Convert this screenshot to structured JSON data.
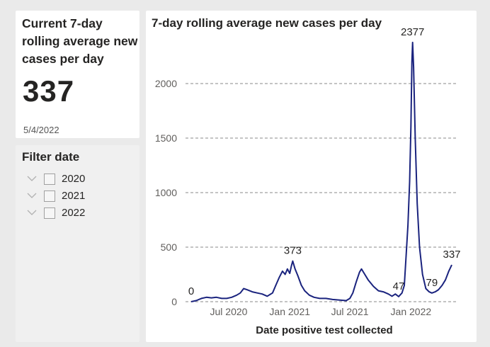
{
  "kpi": {
    "title": "Current 7-day rolling average new cases per day",
    "value": "337",
    "date": "5/4/2022"
  },
  "filter": {
    "title": "Filter date",
    "items": [
      {
        "label": "2020",
        "checked": false
      },
      {
        "label": "2021",
        "checked": false
      },
      {
        "label": "2022",
        "checked": false
      }
    ]
  },
  "chart_data": {
    "type": "line",
    "title": "7-day rolling average new cases per day",
    "xlabel": "Date positive test collected",
    "ylabel": "",
    "ylim": [
      0,
      2500
    ],
    "yticks": [
      0,
      500,
      1000,
      1500,
      2000
    ],
    "ytick_labels": [
      "0",
      "500",
      "1000",
      "1500",
      "2000"
    ],
    "xticks": [
      {
        "date": "2020-07-01",
        "label": "Jul 2020"
      },
      {
        "date": "2021-01-01",
        "label": "Jan 2021"
      },
      {
        "date": "2021-07-01",
        "label": "Jul 2021"
      },
      {
        "date": "2022-01-01",
        "label": "Jan 2022"
      }
    ],
    "grid": true,
    "line_color": "#1a237e",
    "series": [
      {
        "name": "",
        "points": [
          [
            "2020-03-10",
            0
          ],
          [
            "2020-03-25",
            10
          ],
          [
            "2020-04-10",
            30
          ],
          [
            "2020-04-25",
            40
          ],
          [
            "2020-05-10",
            35
          ],
          [
            "2020-05-25",
            40
          ],
          [
            "2020-06-10",
            30
          ],
          [
            "2020-06-25",
            30
          ],
          [
            "2020-07-10",
            40
          ],
          [
            "2020-07-25",
            60
          ],
          [
            "2020-08-05",
            80
          ],
          [
            "2020-08-15",
            120
          ],
          [
            "2020-08-25",
            110
          ],
          [
            "2020-09-10",
            90
          ],
          [
            "2020-09-25",
            80
          ],
          [
            "2020-10-10",
            70
          ],
          [
            "2020-10-25",
            50
          ],
          [
            "2020-11-10",
            80
          ],
          [
            "2020-11-20",
            150
          ],
          [
            "2020-11-30",
            220
          ],
          [
            "2020-12-10",
            280
          ],
          [
            "2020-12-18",
            250
          ],
          [
            "2020-12-25",
            300
          ],
          [
            "2021-01-01",
            260
          ],
          [
            "2021-01-06",
            330
          ],
          [
            "2021-01-10",
            373
          ],
          [
            "2021-01-17",
            300
          ],
          [
            "2021-01-25",
            240
          ],
          [
            "2021-02-05",
            150
          ],
          [
            "2021-02-15",
            100
          ],
          [
            "2021-03-01",
            60
          ],
          [
            "2021-03-15",
            40
          ],
          [
            "2021-04-01",
            30
          ],
          [
            "2021-04-20",
            30
          ],
          [
            "2021-05-10",
            20
          ],
          [
            "2021-06-01",
            15
          ],
          [
            "2021-06-20",
            10
          ],
          [
            "2021-07-01",
            30
          ],
          [
            "2021-07-10",
            80
          ],
          [
            "2021-07-20",
            180
          ],
          [
            "2021-07-30",
            270
          ],
          [
            "2021-08-05",
            300
          ],
          [
            "2021-08-15",
            250
          ],
          [
            "2021-08-25",
            200
          ],
          [
            "2021-09-10",
            140
          ],
          [
            "2021-09-25",
            100
          ],
          [
            "2021-10-10",
            90
          ],
          [
            "2021-10-25",
            70
          ],
          [
            "2021-11-05",
            50
          ],
          [
            "2021-11-15",
            70
          ],
          [
            "2021-11-25",
            47
          ],
          [
            "2021-12-05",
            80
          ],
          [
            "2021-12-12",
            150
          ],
          [
            "2021-12-18",
            450
          ],
          [
            "2021-12-23",
            700
          ],
          [
            "2021-12-28",
            1100
          ],
          [
            "2022-01-01",
            1600
          ],
          [
            "2022-01-04",
            2200
          ],
          [
            "2022-01-06",
            2377
          ],
          [
            "2022-01-09",
            2150
          ],
          [
            "2022-01-14",
            1500
          ],
          [
            "2022-01-20",
            900
          ],
          [
            "2022-01-27",
            500
          ],
          [
            "2022-02-05",
            250
          ],
          [
            "2022-02-15",
            120
          ],
          [
            "2022-02-25",
            90
          ],
          [
            "2022-03-05",
            79
          ],
          [
            "2022-03-15",
            90
          ],
          [
            "2022-03-25",
            110
          ],
          [
            "2022-04-05",
            150
          ],
          [
            "2022-04-15",
            200
          ],
          [
            "2022-04-25",
            280
          ],
          [
            "2022-05-04",
            337
          ]
        ]
      }
    ],
    "annotations": [
      {
        "date": "2020-03-10",
        "value": 0,
        "label": "0"
      },
      {
        "date": "2021-01-10",
        "value": 373,
        "label": "373"
      },
      {
        "date": "2021-11-25",
        "value": 47,
        "label": "47"
      },
      {
        "date": "2022-01-06",
        "value": 2377,
        "label": "2377"
      },
      {
        "date": "2022-03-05",
        "value": 79,
        "label": "79"
      },
      {
        "date": "2022-05-04",
        "value": 337,
        "label": "337"
      }
    ]
  }
}
